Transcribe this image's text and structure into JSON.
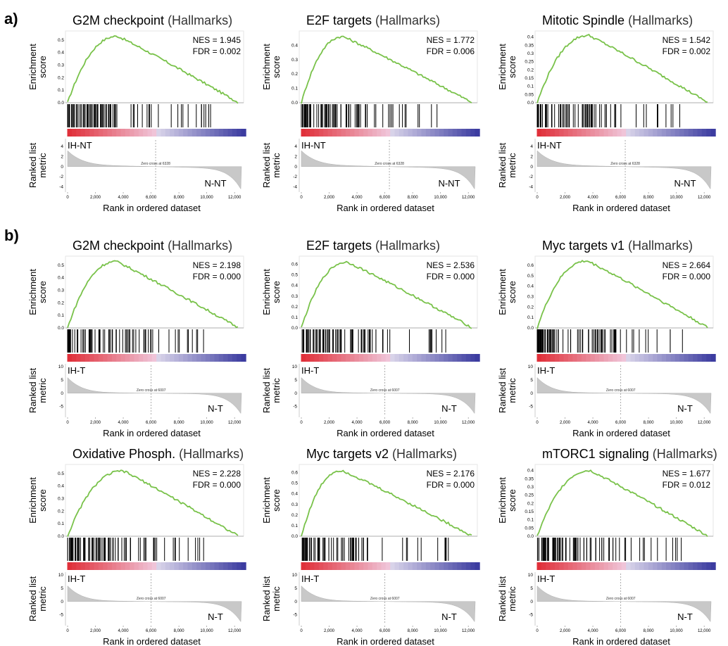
{
  "figure": {
    "panel_labels": [
      "a)",
      "b)"
    ],
    "axis_text": {
      "enrichment_label": [
        "Enrichment",
        "score"
      ],
      "ranked_label": [
        "Ranked list",
        "metric"
      ],
      "xlabel": "Rank in ordered dataset",
      "x_ticks": [
        "0",
        "2,000",
        "4,000",
        "6,000",
        "8,000",
        "10,000",
        "12,000"
      ]
    },
    "colors": {
      "es_curve": "#79c24a",
      "ranked_fill": "#c8c8c8",
      "hits": "#000000",
      "heat_pos": "#e0303a",
      "heat_neg": "#3c3ca0"
    }
  },
  "chart_data": [
    {
      "type": "line",
      "name": "G2M checkpoint",
      "suffix": "(Hallmarks)",
      "nes": "NES = 1.945",
      "fdr": "FDR = 0.002",
      "pos_label": "IH-NT",
      "neg_label": "N-NT",
      "zero_cross": "Zero cross at 6328",
      "zero_at": 6328,
      "es_peak": 0.53,
      "peak_rank": 3600,
      "es_end": 0.0,
      "ylim": [
        0,
        0.55
      ],
      "es_ticks": [
        0,
        0.1,
        0.2,
        0.3,
        0.4,
        0.5
      ],
      "metric_ticks": [
        4,
        2,
        0,
        -2,
        -4
      ],
      "metric_range": [
        -4.5,
        5
      ]
    },
    {
      "type": "line",
      "name": "E2F targets",
      "suffix": "(Hallmarks)",
      "nes": "NES = 1.772",
      "fdr": "FDR = 0.006",
      "pos_label": "IH-NT",
      "neg_label": "N-NT",
      "zero_cross": "Zero cross at 6328",
      "zero_at": 6328,
      "es_peak": 0.46,
      "peak_rank": 3000,
      "es_end": 0.0,
      "ylim": [
        0,
        0.48
      ],
      "es_ticks": [
        0,
        0.1,
        0.2,
        0.3,
        0.4
      ],
      "metric_ticks": [
        4,
        2,
        0,
        -2,
        -4
      ],
      "metric_range": [
        -4.5,
        5
      ]
    },
    {
      "type": "line",
      "name": "Mitotic Spindle",
      "suffix": "(Hallmarks)",
      "nes": "NES = 1.542",
      "fdr": "FDR = 0.002",
      "pos_label": "IH-NT",
      "neg_label": "N-NT",
      "zero_cross": "Zero cross at 6328",
      "zero_at": 6328,
      "es_peak": 0.41,
      "peak_rank": 3700,
      "es_end": 0.0,
      "ylim": [
        0,
        0.42
      ],
      "es_ticks": [
        0,
        0.05,
        0.1,
        0.15,
        0.2,
        0.25,
        0.3,
        0.35,
        0.4
      ],
      "metric_ticks": [
        4,
        2,
        0,
        -2,
        -4
      ],
      "metric_range": [
        -4.5,
        5
      ]
    },
    {
      "type": "line",
      "name": "G2M checkpoint",
      "suffix": "(Hallmarks)",
      "nes": "NES = 2.198",
      "fdr": "FDR = 0.000",
      "pos_label": "IH-T",
      "neg_label": "N-T",
      "zero_cross": "Zero cross at 6007",
      "zero_at": 6007,
      "es_peak": 0.53,
      "peak_rank": 3500,
      "es_end": 0.0,
      "ylim": [
        0,
        0.55
      ],
      "es_ticks": [
        0,
        0.1,
        0.2,
        0.3,
        0.4,
        0.5
      ],
      "metric_ticks": [
        10,
        5,
        0,
        -5
      ],
      "metric_range": [
        -8,
        10
      ]
    },
    {
      "type": "line",
      "name": "E2F targets",
      "suffix": "(Hallmarks)",
      "nes": "NES = 2.536",
      "fdr": "FDR = 0.000",
      "pos_label": "IH-T",
      "neg_label": "N-T",
      "zero_cross": "Zero cross at 6007",
      "zero_at": 6007,
      "es_peak": 0.62,
      "peak_rank": 3300,
      "es_end": 0.0,
      "ylim": [
        0,
        0.65
      ],
      "es_ticks": [
        0,
        0.1,
        0.2,
        0.3,
        0.4,
        0.5,
        0.6
      ],
      "metric_ticks": [
        10,
        5,
        0,
        -5
      ],
      "metric_range": [
        -8,
        10
      ]
    },
    {
      "type": "line",
      "name": "Myc targets v1",
      "suffix": "(Hallmarks)",
      "nes": "NES = 2.664",
      "fdr": "FDR = 0.000",
      "pos_label": "IH-T",
      "neg_label": "N-T",
      "zero_cross": "Zero cross at 6007",
      "zero_at": 6007,
      "es_peak": 0.64,
      "peak_rank": 3600,
      "es_end": 0.0,
      "ylim": [
        0,
        0.66
      ],
      "es_ticks": [
        0,
        0.1,
        0.2,
        0.3,
        0.4,
        0.5,
        0.6
      ],
      "metric_ticks": [
        10,
        5,
        0,
        -5
      ],
      "metric_range": [
        -8,
        10
      ]
    },
    {
      "type": "line",
      "name": "Oxidative Phosph.",
      "suffix": "(Hallmarks)",
      "nes": "NES = 2.228",
      "fdr": "FDR = 0.000",
      "pos_label": "IH-T",
      "neg_label": "N-T",
      "zero_cross": "Zero cross at 6007",
      "zero_at": 6007,
      "es_peak": 0.52,
      "peak_rank": 4000,
      "es_end": 0.0,
      "ylim": [
        0,
        0.55
      ],
      "es_ticks": [
        0,
        0.1,
        0.2,
        0.3,
        0.4,
        0.5
      ],
      "metric_ticks": [
        10,
        5,
        0,
        -5
      ],
      "metric_range": [
        -8,
        10
      ]
    },
    {
      "type": "line",
      "name": "Myc targets v2",
      "suffix": "(Hallmarks)",
      "nes": "NES = 2.176",
      "fdr": "FDR = 0.000",
      "pos_label": "IH-T",
      "neg_label": "N-T",
      "zero_cross": "Zero cross at 6007",
      "zero_at": 6007,
      "es_peak": 0.62,
      "peak_rank": 2900,
      "es_end": 0.0,
      "ylim": [
        0,
        0.65
      ],
      "es_ticks": [
        0,
        0.1,
        0.2,
        0.3,
        0.4,
        0.5,
        0.6
      ],
      "metric_ticks": [
        10,
        5,
        0,
        -5
      ],
      "metric_range": [
        -8,
        10
      ]
    },
    {
      "type": "line",
      "name": "mTORC1 signaling",
      "suffix": "(Hallmarks)",
      "nes": "NES = 1.677",
      "fdr": "FDR = 0.012",
      "pos_label": "IH-T",
      "neg_label": "N-T",
      "zero_cross": "Zero cross at 6007",
      "zero_at": 6007,
      "es_peak": 0.4,
      "peak_rank": 3800,
      "es_end": 0.0,
      "ylim": [
        0,
        0.42
      ],
      "es_ticks": [
        0,
        0.05,
        0.1,
        0.15,
        0.2,
        0.25,
        0.3,
        0.35,
        0.4
      ],
      "metric_ticks": [
        10,
        5,
        0,
        -5
      ],
      "metric_range": [
        -8,
        10
      ]
    }
  ]
}
